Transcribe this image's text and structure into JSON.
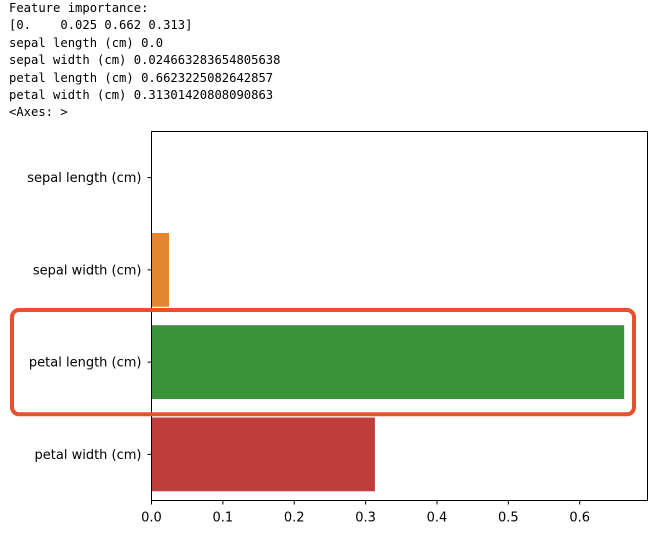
{
  "console": {
    "lines": [
      "Feature importance:",
      "[0.    0.025 0.662 0.313]",
      "sepal length (cm) 0.0",
      "sepal width (cm) 0.024663283654805638",
      "petal length (cm) 0.6623225082642857",
      "petal width (cm) 0.31301420808090863",
      "<Axes: >"
    ]
  },
  "chart_data": {
    "type": "bar",
    "orientation": "horizontal",
    "categories": [
      "sepal length (cm)",
      "sepal width (cm)",
      "petal length (cm)",
      "petal width (cm)"
    ],
    "values": [
      0.0,
      0.024663283654805638,
      0.6623225082642857,
      0.31301420808090863
    ],
    "colors": [
      "#1f77b4",
      "#e3882f",
      "#3a923a",
      "#c03d3e"
    ],
    "xlim": [
      0,
      0.695
    ],
    "xticks": [
      0.0,
      0.1,
      0.2,
      0.3,
      0.4,
      0.5,
      0.6
    ],
    "xtick_labels": [
      "0.0",
      "0.1",
      "0.2",
      "0.3",
      "0.4",
      "0.5",
      "0.6"
    ],
    "grid": false,
    "highlight": {
      "category": "petal length (cm)",
      "color": "#e8502e"
    }
  }
}
